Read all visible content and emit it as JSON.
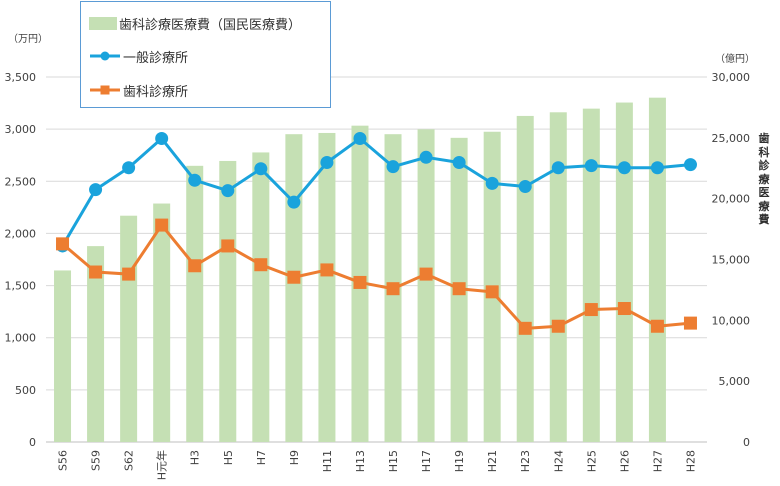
{
  "chart_data": {
    "type": "bar+line",
    "categories": [
      "S56",
      "S59",
      "S62",
      "H元年",
      "H3",
      "H5",
      "H7",
      "H9",
      "H11",
      "H13",
      "H15",
      "H17",
      "H19",
      "H21",
      "H23",
      "H24",
      "H25",
      "H26",
      "H27",
      "H28"
    ],
    "series": [
      {
        "name": "歯科診療医療費（国民医療費）",
        "type": "bar",
        "axis": "right",
        "color": "#c5e0b4",
        "values": [
          14100,
          16100,
          18600,
          19600,
          22700,
          23100,
          23800,
          25300,
          25400,
          26000,
          25300,
          25700,
          25000,
          25500,
          26800,
          27100,
          27400,
          27900,
          28300,
          null
        ]
      },
      {
        "name": "一般診療所",
        "type": "line",
        "axis": "left",
        "color": "#1aa3dc",
        "values": [
          1880,
          2420,
          2630,
          2910,
          2510,
          2410,
          2620,
          2300,
          2680,
          2910,
          2640,
          2730,
          2680,
          2480,
          2450,
          2630,
          2650,
          2630,
          2630,
          2660
        ]
      },
      {
        "name": "歯科診療所",
        "type": "line",
        "axis": "left",
        "color": "#ed7d31",
        "values": [
          1900,
          1630,
          1610,
          2080,
          1690,
          1880,
          1700,
          1580,
          1650,
          1530,
          1470,
          1610,
          1470,
          1440,
          1090,
          1110,
          1270,
          1280,
          1110,
          1140
        ]
      }
    ],
    "y_left": {
      "unit": "（万円）",
      "ylim": [
        0,
        3500
      ],
      "ticks": [
        "0",
        "500",
        "1,000",
        "1,500",
        "2,000",
        "2,500",
        "3,000",
        "3,500"
      ]
    },
    "y_right": {
      "unit": "（億円）",
      "label": "歯科診療医療費",
      "ylim": [
        0,
        30000
      ],
      "ticks": [
        "0",
        "5,000",
        "10,000",
        "15,000",
        "20,000",
        "25,000",
        "30,000"
      ]
    },
    "grid": true,
    "legend_position": "top-left"
  }
}
